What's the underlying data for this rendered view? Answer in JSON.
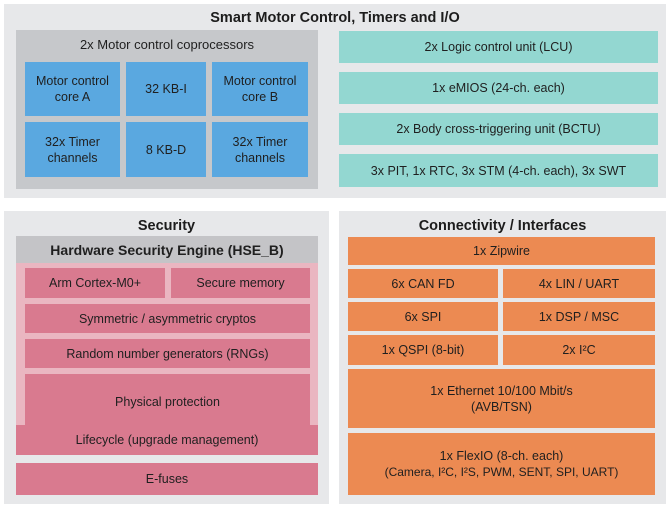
{
  "smc": {
    "title": "Smart Motor Control, Timers and I/O",
    "coproc_header": "2x Motor control coprocessors",
    "core_a": [
      "Motor control",
      "core A"
    ],
    "kb_i": "32 KB-I",
    "core_b": [
      "Motor control",
      "core B"
    ],
    "timer_a": [
      "32x Timer",
      "channels"
    ],
    "kb_d": "8 KB-D",
    "timer_b": [
      "32x Timer",
      "channels"
    ],
    "lcu": "2x Logic control unit (LCU)",
    "emios": "1x eMIOS (24-ch. each)",
    "bctu": "2x Body cross-triggering unit (BCTU)",
    "timers": "3x PIT, 1x RTC, 3x STM (4-ch. each), 3x SWT"
  },
  "security": {
    "title": "Security",
    "hse_title": "Hardware Security Engine (HSE_B)",
    "cortex": "Arm Cortex-M0+",
    "secure_memory": "Secure memory",
    "cryptos": "Symmetric / asymmetric cryptos",
    "rng": "Random number generators (RNGs)",
    "physical": "Physical protection",
    "lifecycle": "Lifecycle (upgrade management)",
    "efuses": "E-fuses"
  },
  "connectivity": {
    "title": "Connectivity / Interfaces",
    "zipwire": "1x Zipwire",
    "can": "6x CAN FD",
    "lin": "4x LIN / UART",
    "spi": "6x SPI",
    "dsp": "1x DSP / MSC",
    "qspi": "1x QSPI (8-bit)",
    "i2c": "2x I²C",
    "ethernet": [
      "1x Ethernet 10/100 Mbit/s",
      "(AVB/TSN)"
    ],
    "flexio": [
      "1x FlexIO (8-ch. each)",
      "(Camera, I²C, I²S, PWM, SENT, SPI, UART)"
    ]
  }
}
